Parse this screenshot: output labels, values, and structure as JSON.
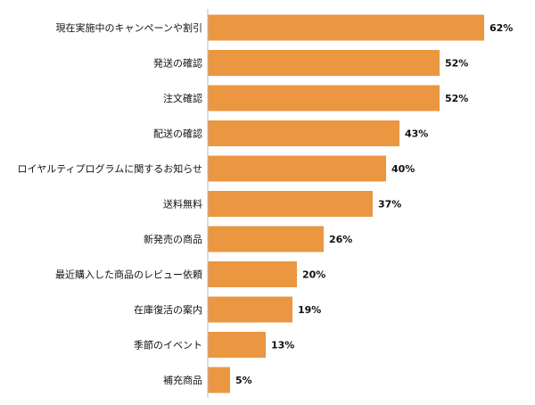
{
  "chart_data": {
    "type": "bar",
    "orientation": "horizontal",
    "title": "",
    "xlabel": "",
    "ylabel": "",
    "categories": [
      "現在実施中のキャンペーンや割引",
      "発送の確認",
      "注文確認",
      "配送の確認",
      "ロイヤルティプログラムに関するお知らせ",
      "送料無料",
      "新発売の商品",
      "最近購入した商品のレビュー依頼",
      "在庫復活の案内",
      "季節のイベント",
      "補充商品"
    ],
    "values": [
      62,
      52,
      52,
      43,
      40,
      37,
      26,
      20,
      19,
      13,
      5
    ],
    "value_suffix": "%",
    "xlim": [
      0,
      70
    ],
    "grid": false,
    "legend": "none",
    "bar_color": "#EB9640",
    "axis_color": "#bbbbbb"
  }
}
